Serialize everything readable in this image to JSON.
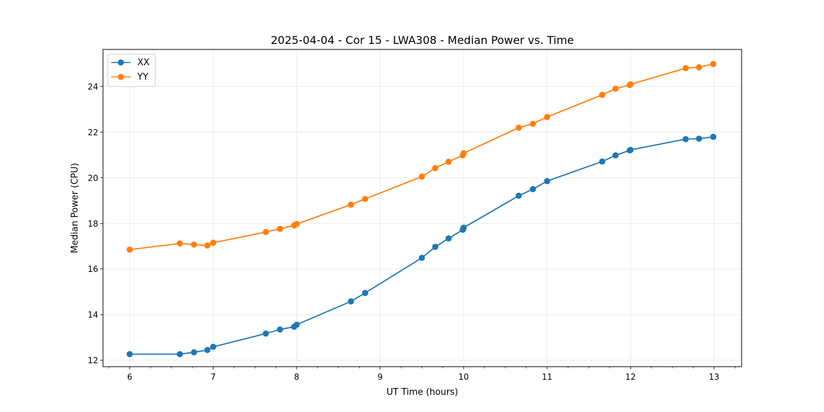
{
  "chart_data": {
    "type": "line",
    "title": "2025-04-04 - Cor 15 - LWA308 - Median Power vs. Time",
    "xlabel": "UT Time (hours)",
    "ylabel": "Median Power (CPU)",
    "xlim": [
      5.68,
      13.33
    ],
    "ylim": [
      11.72,
      25.62
    ],
    "xticks": [
      6,
      7,
      8,
      9,
      10,
      11,
      12,
      13
    ],
    "yticks": [
      12,
      14,
      16,
      18,
      20,
      22,
      24
    ],
    "xminor_step": 0.25,
    "grid": true,
    "legend_position": "upper-left",
    "series": [
      {
        "name": "XX",
        "color": "#1f77b4",
        "x": [
          6.0,
          6.6,
          6.77,
          6.93,
          7.0,
          7.63,
          7.8,
          7.97,
          8.0,
          8.65,
          8.82,
          9.5,
          9.66,
          9.82,
          9.99,
          10.0,
          10.66,
          10.83,
          11.0,
          11.66,
          11.82,
          11.99,
          12.0,
          12.66,
          12.82,
          12.99
        ],
        "y": [
          12.27,
          12.27,
          12.35,
          12.45,
          12.59,
          13.17,
          13.35,
          13.47,
          13.56,
          14.58,
          14.95,
          16.49,
          16.97,
          17.34,
          17.72,
          17.81,
          19.21,
          19.5,
          19.85,
          20.71,
          20.98,
          21.2,
          21.22,
          21.69,
          21.71,
          21.79
        ]
      },
      {
        "name": "YY",
        "color": "#ff7f0e",
        "x": [
          6.0,
          6.6,
          6.77,
          6.93,
          7.0,
          7.63,
          7.8,
          7.97,
          8.0,
          8.65,
          8.82,
          9.5,
          9.66,
          9.82,
          9.99,
          10.0,
          10.66,
          10.83,
          11.0,
          11.66,
          11.82,
          11.99,
          12.0,
          12.66,
          12.82,
          12.99
        ],
        "y": [
          16.85,
          17.12,
          17.07,
          17.03,
          17.15,
          17.62,
          17.76,
          17.91,
          17.97,
          18.82,
          19.07,
          20.05,
          20.42,
          20.7,
          20.98,
          21.07,
          22.19,
          22.36,
          22.66,
          23.63,
          23.9,
          24.06,
          24.09,
          24.8,
          24.84,
          24.98
        ]
      }
    ]
  }
}
